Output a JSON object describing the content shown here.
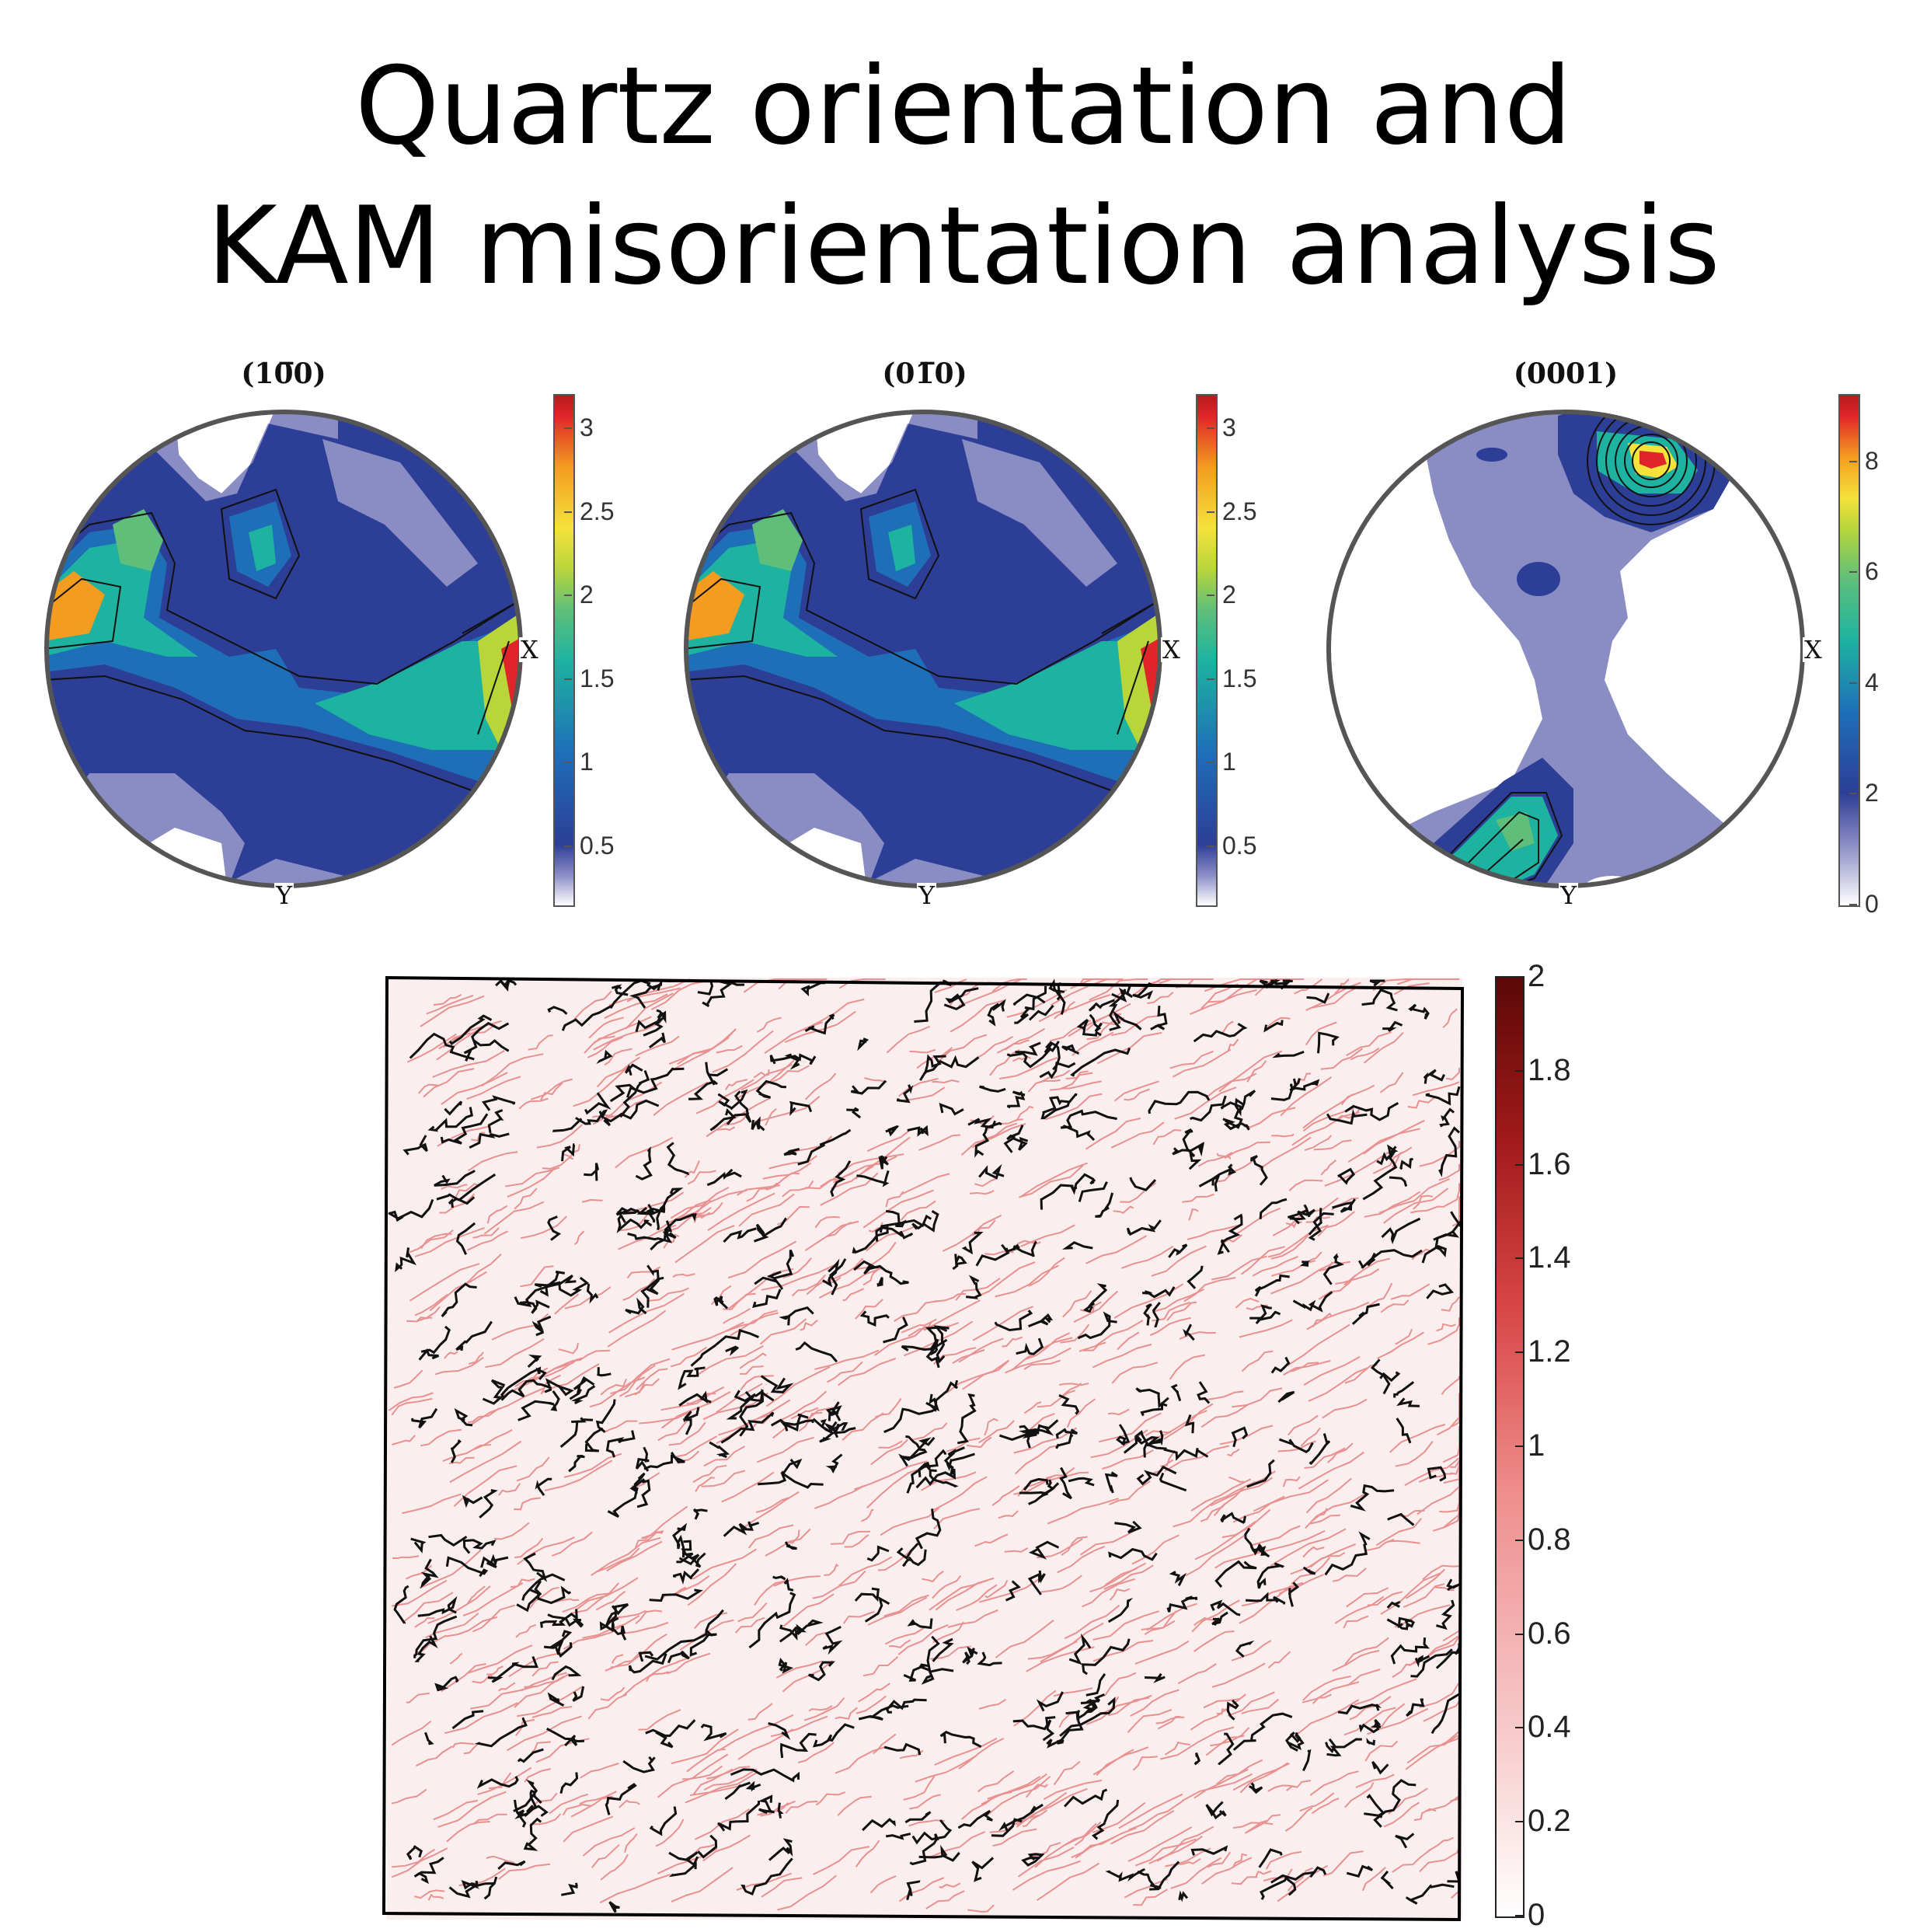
{
  "title": {
    "line1": "Quartz orientation and",
    "line2": "KAM misorientation analysis"
  },
  "pole_figures": [
    {
      "title": "(10̅0)",
      "x_label": "X",
      "y_label": "Y",
      "colorbar_ticks": [
        "0.5",
        "1",
        "1.5",
        "2",
        "2.5",
        "3"
      ],
      "colorbar_range": [
        0.15,
        3.2
      ]
    },
    {
      "title": "(01̅0)",
      "x_label": "X",
      "y_label": "Y",
      "colorbar_ticks": [
        "0.5",
        "1",
        "1.5",
        "2",
        "2.5",
        "3"
      ],
      "colorbar_range": [
        0.15,
        3.2
      ]
    },
    {
      "title": "(0001)",
      "x_label": "X",
      "y_label": "Y",
      "colorbar_ticks": [
        "0",
        "2",
        "4",
        "6",
        "8"
      ],
      "colorbar_range": [
        0,
        9.2
      ]
    }
  ],
  "colors": {
    "pf_low": "#8a8cc4",
    "pf_blue": "#2d3e96",
    "pf_teal": "#1db3a0",
    "pf_red": "#e0252a",
    "kam_max": "#5c0808",
    "grain_boundary": "#111111"
  },
  "chart_data": [
    {
      "type": "heatmap",
      "title": "(10̅0)",
      "description_kind": "pole figure contour",
      "max_density": 3.2,
      "maxima": [
        {
          "location": "X",
          "value": 3.2
        },
        {
          "location": "left edge",
          "value": 2.9
        }
      ]
    },
    {
      "type": "heatmap",
      "title": "(01̅0)",
      "description_kind": "pole figure contour",
      "max_density": 3.2,
      "maxima": [
        {
          "location": "X",
          "value": 3.2
        },
        {
          "location": "left edge",
          "value": 2.9
        }
      ]
    },
    {
      "type": "heatmap",
      "title": "(0001)",
      "description_kind": "pole figure contour",
      "max_density": 9.2,
      "maxima": [
        {
          "location": "top",
          "value": 9.0
        },
        {
          "location": "near Y",
          "value": 6.0
        }
      ]
    },
    {
      "type": "heatmap",
      "title": "",
      "description_kind": "KAM map",
      "colorbar_ticks": [
        "0",
        "0.2",
        "0.4",
        "0.6",
        "0.8",
        "1",
        "1.2",
        "1.4",
        "1.6",
        "1.8",
        "2"
      ],
      "range": [
        0,
        2
      ]
    }
  ]
}
